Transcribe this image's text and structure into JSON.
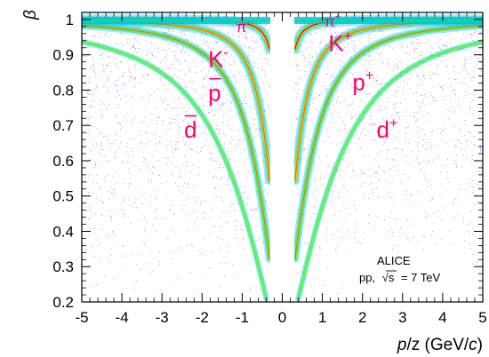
{
  "chart_data": {
    "type": "heatmap",
    "title": "",
    "xlabel": "p/z (GeV/c)",
    "xlabel_parts": {
      "p": "p",
      "slash": "/z (GeV/",
      "c": "c",
      "close": ")"
    },
    "ylabel": "β",
    "xlim": [
      -5,
      5
    ],
    "ylim": [
      0.2,
      1.02
    ],
    "xticks": [
      -5,
      -4,
      -3,
      -2,
      -1,
      0,
      1,
      2,
      3,
      4,
      5
    ],
    "xtick_labels": [
      "-5",
      "-4",
      "-3",
      "-2",
      "-1",
      "0",
      "1",
      "2",
      "3",
      "4",
      "5"
    ],
    "yticks": [
      0.2,
      0.3,
      0.4,
      0.5,
      0.6,
      0.7,
      0.8,
      0.9,
      1
    ],
    "ytick_labels": [
      "0.2",
      "0.3",
      "0.4",
      "0.5",
      "0.6",
      "0.7",
      "0.8",
      "0.9",
      "1"
    ],
    "gap": [
      -0.3,
      0.3
    ],
    "colormap": [
      "#5a00d6",
      "#0038ff",
      "#00b8ff",
      "#00e68c",
      "#7dff00",
      "#ffd400",
      "#ff5a00",
      "#e60000"
    ],
    "series": [
      {
        "name": "π",
        "sign": "-",
        "mass": 0.1396,
        "label_x": -1.15,
        "label_y": 0.965,
        "size": 17
      },
      {
        "name": "π",
        "sign": "+",
        "mass": 0.1396,
        "label_x": 1.05,
        "label_y": 0.98,
        "size": 17
      },
      {
        "name": "K",
        "sign": "-",
        "mass": 0.4937,
        "label_x": -1.85,
        "label_y": 0.865,
        "size": 26
      },
      {
        "name": "K",
        "sign": "+",
        "mass": 0.4937,
        "label_x": 1.15,
        "label_y": 0.91,
        "size": 26
      },
      {
        "name": "p",
        "sign": "bar",
        "mass": 0.9383,
        "label_x": -1.85,
        "label_y": 0.77,
        "size": 26
      },
      {
        "name": "p",
        "sign": "+",
        "mass": 0.9383,
        "label_x": 1.75,
        "label_y": 0.8,
        "size": 26
      },
      {
        "name": "d",
        "sign": "bar",
        "mass": 1.8756,
        "label_x": -2.45,
        "label_y": 0.665,
        "size": 26
      },
      {
        "name": "d",
        "sign": "+",
        "mass": 1.8756,
        "label_x": 2.35,
        "label_y": 0.665,
        "size": 26
      }
    ],
    "annotation": {
      "line1": "ALICE",
      "line2_prefix": "pp,",
      "line2_sqrt": "√s",
      "line2_suffix": "= 7 TeV"
    }
  }
}
